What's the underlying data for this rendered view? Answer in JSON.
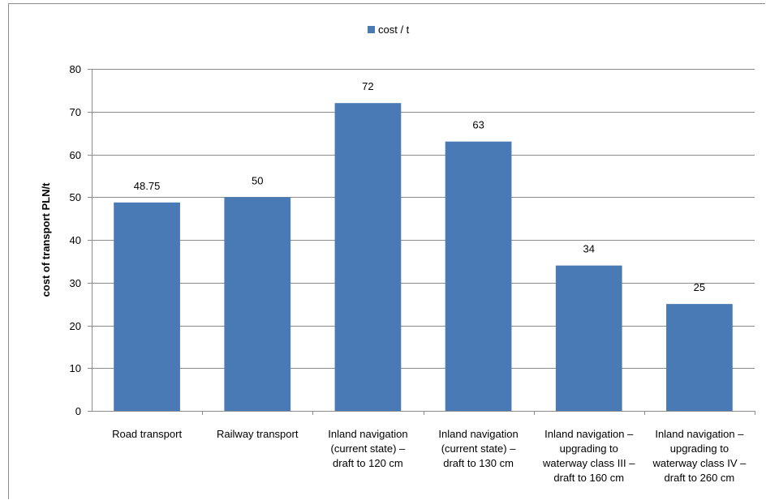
{
  "chart_data": {
    "type": "bar",
    "categories": [
      [
        "Road transport"
      ],
      [
        "Railway transport"
      ],
      [
        "Inland navigation",
        "(current state) –",
        "draft to 120 cm"
      ],
      [
        "Inland navigation",
        "(current state) –",
        "draft to 130 cm"
      ],
      [
        "Inland navigation –",
        "upgrading to",
        "waterway class III –",
        "draft to 160 cm"
      ],
      [
        "Inland navigation –",
        "upgrading to",
        "waterway class IV –",
        "draft to 260 cm"
      ]
    ],
    "series": [
      {
        "name": "cost / t",
        "values": [
          48.75,
          50,
          72,
          63,
          34,
          25
        ],
        "labels": [
          "48.75",
          "50",
          "72",
          "63",
          "34",
          "25"
        ],
        "color": "#4a7ab5"
      }
    ],
    "ylabel": "cost of transport PLN/t",
    "ylim": [
      0,
      80
    ],
    "yticks": [
      0,
      10,
      20,
      30,
      40,
      50,
      60,
      70,
      80
    ],
    "grid": true,
    "legend": "top-center",
    "gridColor": "#8c8c8c",
    "axisColor": "#8c8c8c"
  }
}
